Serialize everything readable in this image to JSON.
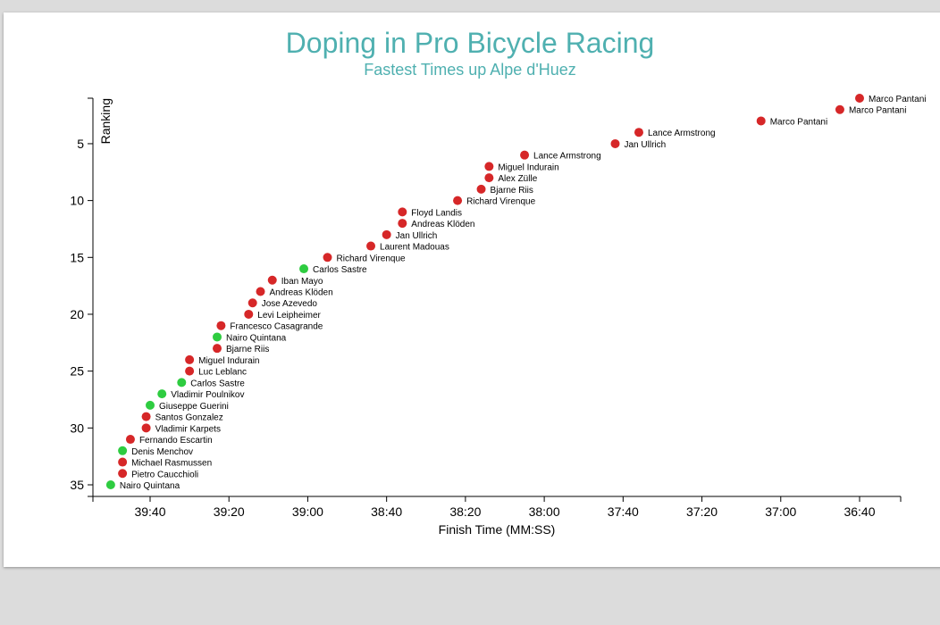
{
  "chart_data": {
    "type": "scatter",
    "title": "Doping in Pro Bicycle Racing",
    "subtitle": "Fastest Times up Alpe d'Huez",
    "xlabel": "Finish Time (MM:SS)",
    "ylabel": "Ranking",
    "x_reversed": true,
    "x_ticks": [
      "39:40",
      "39:20",
      "39:00",
      "38:40",
      "38:20",
      "38:00",
      "37:40",
      "37:20",
      "37:00",
      "36:40"
    ],
    "y_ticks": [
      5,
      10,
      15,
      20,
      25,
      30,
      35
    ],
    "colors": {
      "doping": "#d62728",
      "clean": "#2ecc40"
    },
    "points": [
      {
        "rank": 1,
        "time": "36:40",
        "name": "Marco Pantani",
        "doping": true
      },
      {
        "rank": 2,
        "time": "36:45",
        "name": "Marco Pantani",
        "doping": true
      },
      {
        "rank": 3,
        "time": "37:05",
        "name": "Marco Pantani",
        "doping": true
      },
      {
        "rank": 4,
        "time": "37:36",
        "name": "Lance Armstrong",
        "doping": true
      },
      {
        "rank": 5,
        "time": "37:42",
        "name": "Jan Ullrich",
        "doping": true
      },
      {
        "rank": 6,
        "time": "38:05",
        "name": "Lance Armstrong",
        "doping": true
      },
      {
        "rank": 7,
        "time": "38:14",
        "name": "Miguel Indurain",
        "doping": true
      },
      {
        "rank": 8,
        "time": "38:14",
        "name": "Alex Zülle",
        "doping": true
      },
      {
        "rank": 9,
        "time": "38:16",
        "name": "Bjarne Riis",
        "doping": true
      },
      {
        "rank": 10,
        "time": "38:22",
        "name": "Richard Virenque",
        "doping": true
      },
      {
        "rank": 11,
        "time": "38:36",
        "name": "Floyd Landis",
        "doping": true
      },
      {
        "rank": 12,
        "time": "38:36",
        "name": "Andreas Klöden",
        "doping": true
      },
      {
        "rank": 13,
        "time": "38:40",
        "name": "Jan Ullrich",
        "doping": true
      },
      {
        "rank": 14,
        "time": "38:44",
        "name": "Laurent Madouas",
        "doping": true
      },
      {
        "rank": 15,
        "time": "38:55",
        "name": "Richard Virenque",
        "doping": true
      },
      {
        "rank": 16,
        "time": "39:01",
        "name": "Carlos Sastre",
        "doping": false
      },
      {
        "rank": 17,
        "time": "39:09",
        "name": "Iban Mayo",
        "doping": true
      },
      {
        "rank": 18,
        "time": "39:12",
        "name": "Andreas Klöden",
        "doping": true
      },
      {
        "rank": 19,
        "time": "39:14",
        "name": "Jose Azevedo",
        "doping": true
      },
      {
        "rank": 20,
        "time": "39:15",
        "name": "Levi Leipheimer",
        "doping": true
      },
      {
        "rank": 21,
        "time": "39:22",
        "name": "Francesco Casagrande",
        "doping": true
      },
      {
        "rank": 22,
        "time": "39:23",
        "name": "Nairo Quintana",
        "doping": false
      },
      {
        "rank": 23,
        "time": "39:23",
        "name": "Bjarne Riis",
        "doping": true
      },
      {
        "rank": 24,
        "time": "39:30",
        "name": "Miguel Indurain",
        "doping": true
      },
      {
        "rank": 25,
        "time": "39:30",
        "name": "Luc Leblanc",
        "doping": true
      },
      {
        "rank": 26,
        "time": "39:32",
        "name": "Carlos Sastre",
        "doping": false
      },
      {
        "rank": 27,
        "time": "39:37",
        "name": "Vladimir Poulnikov",
        "doping": false
      },
      {
        "rank": 28,
        "time": "39:40",
        "name": "Giuseppe Guerini",
        "doping": false
      },
      {
        "rank": 29,
        "time": "39:41",
        "name": "Santos Gonzalez",
        "doping": true
      },
      {
        "rank": 30,
        "time": "39:41",
        "name": "Vladimir Karpets",
        "doping": true
      },
      {
        "rank": 31,
        "time": "39:45",
        "name": "Fernando Escartin",
        "doping": true
      },
      {
        "rank": 32,
        "time": "39:47",
        "name": "Denis Menchov",
        "doping": false
      },
      {
        "rank": 33,
        "time": "39:47",
        "name": "Michael Rasmussen",
        "doping": true
      },
      {
        "rank": 34,
        "time": "39:47",
        "name": "Pietro Caucchioli",
        "doping": true
      },
      {
        "rank": 35,
        "time": "39:50",
        "name": "Nairo Quintana",
        "doping": false
      }
    ]
  }
}
